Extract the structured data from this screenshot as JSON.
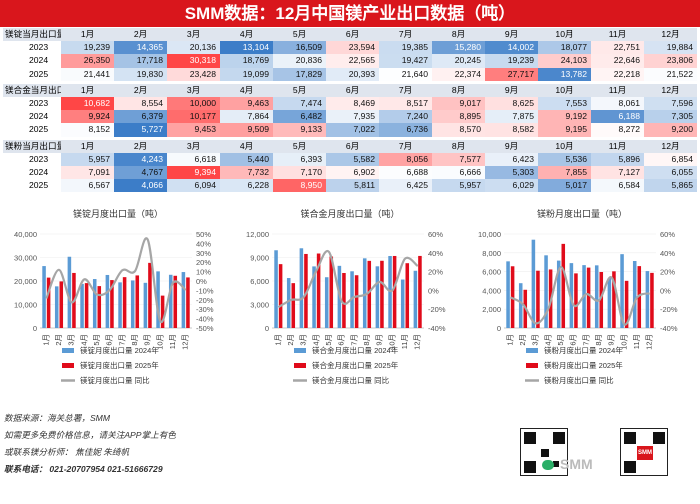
{
  "title": "SMM数据：12月中国镁产业出口数据（吨）",
  "months": [
    "1月",
    "2月",
    "3月",
    "4月",
    "5月",
    "6月",
    "7月",
    "8月",
    "9月",
    "10月",
    "11月",
    "12月"
  ],
  "tables": [
    {
      "label": "镁锭当月出口量",
      "rows": [
        {
          "year": "2023",
          "values": [
            "19,239",
            "14,365",
            "20,136",
            "13,104",
            "16,509",
            "23,594",
            "19,385",
            "15,280",
            "14,002",
            "18,077",
            "22,751",
            "19,884"
          ]
        },
        {
          "year": "2024",
          "values": [
            "26,350",
            "17,718",
            "30,318",
            "18,769",
            "20,836",
            "22,565",
            "19,427",
            "20,245",
            "19,239",
            "24,103",
            "22,646",
            "23,806"
          ]
        },
        {
          "year": "2025",
          "values": [
            "21,441",
            "19,830",
            "23,428",
            "19,099",
            "17,829",
            "20,393",
            "21,640",
            "22,374",
            "27,717",
            "13,782",
            "22,218",
            "21,522"
          ]
        }
      ]
    },
    {
      "label": "镁合金当月出口量",
      "rows": [
        {
          "year": "2023",
          "values": [
            "10,682",
            "8,554",
            "10,000",
            "9,463",
            "7,474",
            "8,469",
            "8,517",
            "9,017",
            "8,625",
            "7,553",
            "8,061",
            "7,596"
          ]
        },
        {
          "year": "2024",
          "values": [
            "9,924",
            "6,379",
            "10,177",
            "7,864",
            "6,482",
            "7,935",
            "7,240",
            "8,895",
            "7,875",
            "9,192",
            "6,188",
            "7,305"
          ]
        },
        {
          "year": "2025",
          "values": [
            "8,152",
            "5,727",
            "9,453",
            "9,509",
            "9,133",
            "7,022",
            "6,736",
            "8,570",
            "8,582",
            "9,195",
            "8,272",
            "9,200"
          ]
        }
      ]
    },
    {
      "label": "镁粉当月出口量",
      "rows": [
        {
          "year": "2023",
          "values": [
            "5,957",
            "4,243",
            "6,618",
            "5,440",
            "6,393",
            "5,582",
            "8,056",
            "7,577",
            "6,423",
            "5,536",
            "5,896",
            "6,854"
          ]
        },
        {
          "year": "2024",
          "values": [
            "7,091",
            "4,767",
            "9,394",
            "7,732",
            "7,170",
            "6,902",
            "6,688",
            "6,666",
            "5,303",
            "7,855",
            "7,127",
            "6,055"
          ]
        },
        {
          "year": "2025",
          "values": [
            "6,567",
            "4,066",
            "6,094",
            "6,228",
            "8,950",
            "5,811",
            "6,425",
            "5,957",
            "6,029",
            "5,017",
            "6,584",
            "5,865"
          ]
        }
      ]
    }
  ],
  "chart_data": [
    {
      "type": "bar",
      "title": "镁锭月度出口量（吨）",
      "categories": [
        "1月",
        "2月",
        "3月",
        "4月",
        "5月",
        "6月",
        "7月",
        "8月",
        "9月",
        "10月",
        "11月",
        "12月"
      ],
      "series": [
        {
          "name": "镁锭月度出口量 2024年",
          "color": "#5b9bd5",
          "values": [
            26350,
            17718,
            30318,
            18769,
            20836,
            22565,
            19427,
            20245,
            19239,
            24103,
            22646,
            23806
          ]
        },
        {
          "name": "镁锭月度出口量 2025年",
          "color": "#e00b1a",
          "values": [
            21441,
            19830,
            23428,
            19099,
            17829,
            20393,
            21640,
            22374,
            27717,
            13782,
            22218,
            21522
          ]
        },
        {
          "name": "镁锭月度出口量 同比",
          "color": "#a6a6a6",
          "axis": "right",
          "values": [
            -18.6,
            11.9,
            -22.7,
            1.8,
            -14.4,
            -9.6,
            11.4,
            10.5,
            44.1,
            -42.8,
            -1.9,
            -9.6
          ]
        }
      ],
      "ylim": [
        0,
        40000
      ],
      "y_ticks": [
        "40,000",
        "30,000",
        "20,000",
        "10,000",
        "0"
      ],
      "y2lim": [
        -50,
        50
      ],
      "y2_ticks": [
        "50%",
        "40%",
        "30%",
        "20%",
        "10%",
        "0%",
        "-10%",
        "-20%",
        "-30%",
        "-40%",
        "-50%"
      ]
    },
    {
      "type": "bar",
      "title": "镁合金月度出口量（吨）",
      "categories": [
        "1月",
        "2月",
        "3月",
        "4月",
        "5月",
        "6月",
        "7月",
        "8月",
        "9月",
        "10月",
        "11月",
        "12月"
      ],
      "series": [
        {
          "name": "镁合金月度出口量 2024年",
          "color": "#5b9bd5",
          "values": [
            9924,
            6379,
            10177,
            7864,
            6482,
            7935,
            7240,
            8895,
            7875,
            9192,
            6188,
            7305
          ]
        },
        {
          "name": "镁合金月度出口量 2025年",
          "color": "#e00b1a",
          "values": [
            8152,
            5727,
            9453,
            9509,
            9133,
            7022,
            6736,
            8570,
            8582,
            9195,
            8272,
            9200
          ]
        },
        {
          "name": "镁合金月度出口量 同比",
          "color": "#a6a6a6",
          "axis": "right",
          "values": [
            -17.9,
            -10.2,
            -7.1,
            20.9,
            40.9,
            -11.5,
            -7.0,
            -3.7,
            9.0,
            0.0,
            33.7,
            25.9
          ]
        }
      ],
      "ylim": [
        0,
        12000
      ],
      "y_ticks": [
        "12,000",
        "9,000",
        "6,000",
        "3,000",
        "0"
      ],
      "y2lim": [
        -40,
        60
      ],
      "y2_ticks": [
        "60%",
        "40%",
        "20%",
        "0%",
        "-20%",
        "-40%"
      ]
    },
    {
      "type": "bar",
      "title": "镁粉月度出口量（吨）",
      "categories": [
        "1月",
        "2月",
        "3月",
        "4月",
        "5月",
        "6月",
        "7月",
        "8月",
        "9月",
        "10月",
        "11月",
        "12月"
      ],
      "series": [
        {
          "name": "镁粉月度出口量 2024年",
          "color": "#5b9bd5",
          "values": [
            7091,
            4767,
            9394,
            7732,
            7170,
            6902,
            6688,
            6666,
            5303,
            7855,
            7127,
            6055
          ]
        },
        {
          "name": "镁粉月度出口量 2025年",
          "color": "#e00b1a",
          "values": [
            6567,
            4066,
            6094,
            6228,
            8950,
            5811,
            6425,
            5957,
            6029,
            5017,
            6584,
            5865
          ]
        },
        {
          "name": "镁粉月度出口量 同比",
          "color": "#a6a6a6",
          "axis": "right",
          "values": [
            -7.4,
            -14.7,
            -35.1,
            -19.5,
            24.8,
            -15.8,
            -3.9,
            -10.6,
            13.7,
            -36.1,
            -7.6,
            -3.1
          ]
        }
      ],
      "ylim": [
        0,
        10000
      ],
      "y_ticks": [
        "10,000",
        "8,000",
        "6,000",
        "4,000",
        "2,000",
        "0"
      ],
      "y2lim": [
        -40,
        60
      ],
      "y2_ticks": [
        "60%",
        "40%",
        "20%",
        "0%",
        "-20%",
        "-40%"
      ]
    }
  ],
  "footer": {
    "source": "数据来源：海关总署，SMM",
    "line2": "如需更多免费价格信息，请关注APP掌上有色",
    "line3": "或联系镁分析师：  焦佳妮          朱绮帆",
    "line4": "联系电话：  021-20707954  021-51666729",
    "brand": "SMM",
    "watermark": "SMM"
  }
}
